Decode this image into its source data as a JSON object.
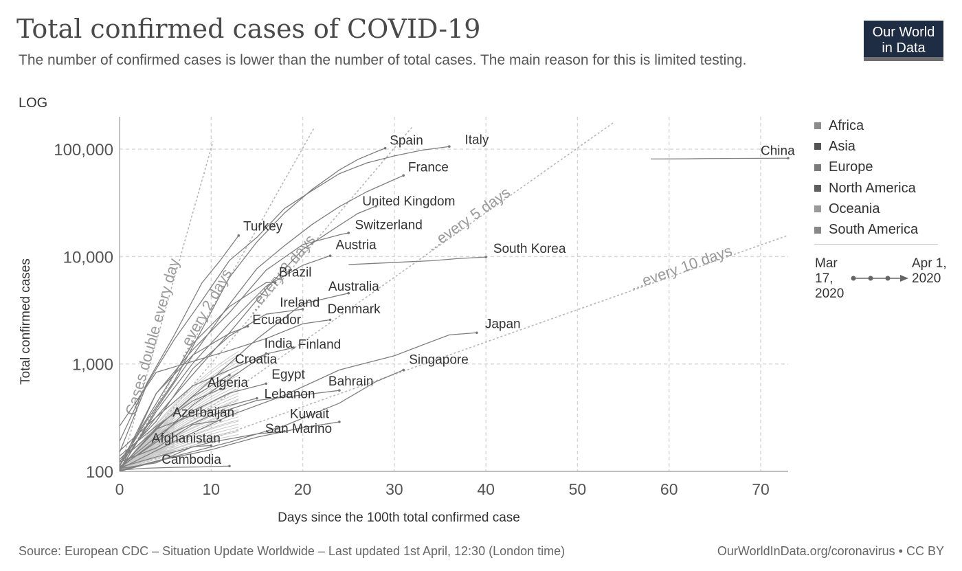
{
  "header": {
    "title": "Total confirmed cases of COVID-19",
    "subtitle": "The number of confirmed cases is lower than the number of total cases. The main reason for this is limited testing.",
    "scale_label": "LOG",
    "logo_line1": "Our World",
    "logo_line2": "in Data"
  },
  "footer": {
    "source": "Source: European CDC – Situation Update Worldwide – Last updated 1st April, 12:30 (London time)",
    "url": "OurWorldInData.org/coronavirus • CC BY"
  },
  "legend": {
    "items": [
      {
        "label": "Africa",
        "color": "#8c8c8c"
      },
      {
        "label": "Asia",
        "color": "#555555"
      },
      {
        "label": "Europe",
        "color": "#7a7a7a"
      },
      {
        "label": "North America",
        "color": "#5e5e5e"
      },
      {
        "label": "Oceania",
        "color": "#9a9a9a"
      },
      {
        "label": "South America",
        "color": "#888888"
      }
    ],
    "time_start": "Mar 17, 2020",
    "time_end": "Apr 1, 2020"
  },
  "chart_data": {
    "type": "line",
    "title": "Total confirmed cases of COVID-19",
    "xlabel": "Days since the 100th total confirmed case",
    "ylabel": "Total confirmed cases",
    "y_scale": "log",
    "xlim": [
      0,
      73
    ],
    "ylim": [
      100,
      200000
    ],
    "x_ticks": [
      0,
      10,
      20,
      30,
      40,
      50,
      60,
      70
    ],
    "y_ticks": [
      {
        "value": 100,
        "label": "100"
      },
      {
        "value": 1000,
        "label": "1,000"
      },
      {
        "value": 10000,
        "label": "10,000"
      },
      {
        "value": 100000,
        "label": "100,000"
      }
    ],
    "grid": true,
    "line_color": "#7f7f7f",
    "reference_lines": [
      {
        "name": "Cases double every day",
        "doubling_days": 1,
        "x_end": 10.2
      },
      {
        "name": "...every 2 days",
        "doubling_days": 2,
        "x_end": 21.2
      },
      {
        "name": "...every 3 days",
        "doubling_days": 3,
        "x_end": 32
      },
      {
        "name": "...every 5 days",
        "doubling_days": 5,
        "x_end": 54
      },
      {
        "name": "...every 10 days",
        "doubling_days": 10,
        "x_end": 73
      }
    ],
    "series": [
      {
        "name": "China",
        "x": [
          58,
          60,
          62,
          64,
          66,
          68,
          70,
          73
        ],
        "y": [
          81000,
          81050,
          81200,
          81700,
          81900,
          82050,
          82200,
          82300
        ]
      },
      {
        "name": "Italy",
        "x": [
          0,
          3,
          6,
          9,
          12,
          15,
          18,
          21,
          24,
          27,
          30,
          33,
          36
        ],
        "y": [
          150,
          650,
          1700,
          3900,
          9200,
          15100,
          27980,
          41035,
          59138,
          74386,
          86498,
          97689,
          105792
        ]
      },
      {
        "name": "Spain",
        "x": [
          0,
          3,
          6,
          9,
          12,
          15,
          18,
          21,
          24,
          26,
          28,
          29
        ],
        "y": [
          114,
          300,
          700,
          2100,
          6400,
          13700,
          25400,
          42000,
          64000,
          80000,
          94400,
          102000
        ]
      },
      {
        "name": "France",
        "x": [
          0,
          4,
          8,
          12,
          15,
          18,
          21,
          24,
          27,
          30,
          31
        ],
        "y": [
          100,
          380,
          1200,
          3600,
          7730,
          12600,
          19850,
          29150,
          40170,
          52130,
          56900
        ]
      },
      {
        "name": "United Kingdom",
        "x": [
          0,
          4,
          8,
          12,
          16,
          20,
          24,
          26,
          28
        ],
        "y": [
          115,
          320,
          800,
          1950,
          5000,
          11660,
          19520,
          25150,
          29474
        ]
      },
      {
        "name": "Switzerland",
        "x": [
          0,
          4,
          8,
          12,
          16,
          20,
          24,
          25
        ],
        "y": [
          100,
          530,
          1360,
          3010,
          7470,
          12928,
          15922,
          16605
        ]
      },
      {
        "name": "Austria",
        "x": [
          0,
          4,
          8,
          12,
          16,
          20,
          23
        ],
        "y": [
          102,
          360,
          1016,
          2388,
          5283,
          8291,
          10180
        ]
      },
      {
        "name": "Turkey",
        "x": [
          0,
          3,
          6,
          9,
          11,
          13
        ],
        "y": [
          191,
          670,
          1872,
          5698,
          9217,
          15679
        ]
      },
      {
        "name": "Brazil",
        "x": [
          0,
          4,
          8,
          12,
          16,
          17
        ],
        "y": [
          121,
          428,
          1546,
          3417,
          5717,
          5717
        ]
      },
      {
        "name": "South Korea",
        "x": [
          25,
          28,
          31,
          34,
          37,
          40
        ],
        "y": [
          8413,
          8652,
          8897,
          9137,
          9583,
          9887
        ]
      },
      {
        "name": "Australia",
        "x": [
          0,
          5,
          10,
          15,
          20,
          25
        ],
        "y": [
          107,
          300,
          710,
          1709,
          3635,
          4559
        ]
      },
      {
        "name": "Ireland",
        "x": [
          0,
          4,
          8,
          12,
          16,
          20
        ],
        "y": [
          129,
          292,
          906,
          1819,
          2910,
          3235
        ]
      },
      {
        "name": "Denmark",
        "x": [
          0,
          4,
          8,
          12,
          16,
          20,
          23
        ],
        "y": [
          264,
          836,
          1057,
          1337,
          1724,
          2366,
          2577
        ]
      },
      {
        "name": "Ecuador",
        "x": [
          0,
          4,
          8,
          12,
          14
        ],
        "y": [
          111,
          532,
          1211,
          1924,
          2240
        ]
      },
      {
        "name": "India",
        "x": [
          0,
          4,
          8,
          12,
          16
        ],
        "y": [
          107,
          194,
          415,
          727,
          1251
        ]
      },
      {
        "name": "Finland",
        "x": [
          0,
          4,
          8,
          12,
          16,
          19
        ],
        "y": [
          155,
          319,
          626,
          880,
          1240,
          1418
        ]
      },
      {
        "name": "Japan",
        "x": [
          0,
          6,
          12,
          18,
          24,
          30,
          36,
          39
        ],
        "y": [
          105,
          190,
          331,
          511,
          880,
          1193,
          1866,
          1953
        ]
      },
      {
        "name": "Croatia",
        "x": [
          0,
          4,
          8,
          12
        ],
        "y": [
          105,
          254,
          495,
          790
        ]
      },
      {
        "name": "Egypt",
        "x": [
          0,
          4,
          8,
          12,
          16
        ],
        "y": [
          110,
          210,
          366,
          536,
          656
        ]
      },
      {
        "name": "Algeria",
        "x": [
          0,
          4,
          8,
          11
        ],
        "y": [
          139,
          264,
          454,
          584
        ]
      },
      {
        "name": "Singapore",
        "x": [
          0,
          6,
          12,
          18,
          24,
          28,
          31
        ],
        "y": [
          102,
          138,
          187,
          266,
          432,
          685,
          879
        ]
      },
      {
        "name": "Bahrain",
        "x": [
          0,
          5,
          10,
          15,
          20,
          24
        ],
        "y": [
          109,
          214,
          332,
          458,
          515,
          567
        ]
      },
      {
        "name": "Lebanon",
        "x": [
          0,
          4,
          8,
          12,
          15
        ],
        "y": [
          124,
          248,
          333,
          412,
          479
        ]
      },
      {
        "name": "Azerbaijan",
        "x": [
          0,
          4,
          8,
          11
        ],
        "y": [
          122,
          165,
          273,
          298
        ]
      },
      {
        "name": "Kuwait",
        "x": [
          0,
          5,
          10,
          15,
          20,
          24
        ],
        "y": [
          100,
          130,
          159,
          208,
          255,
          289
        ]
      },
      {
        "name": "San Marino",
        "x": [
          0,
          5,
          10,
          15,
          18
        ],
        "y": [
          109,
          144,
          187,
          223,
          236
        ]
      },
      {
        "name": "Afghanistan",
        "x": [
          0,
          4,
          8,
          10
        ],
        "y": [
          106,
          120,
          170,
          174
        ]
      },
      {
        "name": "Cambodia",
        "x": [
          0,
          3,
          6,
          9,
          12
        ],
        "y": [
          103,
          107,
          109,
          110,
          112
        ]
      }
    ],
    "labels": [
      {
        "text": "Spain",
        "x": 29.5,
        "y": 110000
      },
      {
        "text": "Italy",
        "x": 37.7,
        "y": 112000
      },
      {
        "text": "China",
        "x": 70,
        "y": 88000
      },
      {
        "text": "France",
        "x": 31.5,
        "y": 62000
      },
      {
        "text": "United Kingdom",
        "x": 26.5,
        "y": 30000
      },
      {
        "text": "Turkey",
        "x": 13.5,
        "y": 17500
      },
      {
        "text": "Switzerland",
        "x": 25.7,
        "y": 18000
      },
      {
        "text": "Austria",
        "x": 23.6,
        "y": 11700
      },
      {
        "text": "South Korea",
        "x": 40.8,
        "y": 10800
      },
      {
        "text": "Brazil",
        "x": 17.4,
        "y": 6500
      },
      {
        "text": "Australia",
        "x": 22.8,
        "y": 4800
      },
      {
        "text": "Ireland",
        "x": 17.5,
        "y": 3400
      },
      {
        "text": "Denmark",
        "x": 22.7,
        "y": 2950
      },
      {
        "text": "Ecuador",
        "x": 14.5,
        "y": 2350
      },
      {
        "text": "India",
        "x": 15.8,
        "y": 1420
      },
      {
        "text": "Finland",
        "x": 19.5,
        "y": 1390
      },
      {
        "text": "Japan",
        "x": 39.9,
        "y": 2160
      },
      {
        "text": "Croatia",
        "x": 12.6,
        "y": 1010
      },
      {
        "text": "Singapore",
        "x": 31.6,
        "y": 1000
      },
      {
        "text": "Egypt",
        "x": 16.6,
        "y": 730
      },
      {
        "text": "Algeria",
        "x": 9.6,
        "y": 610
      },
      {
        "text": "Bahrain",
        "x": 22.8,
        "y": 630
      },
      {
        "text": "Lebanon",
        "x": 15.8,
        "y": 480
      },
      {
        "text": "Azerbaijan",
        "x": 5.8,
        "y": 322
      },
      {
        "text": "Kuwait",
        "x": 18.6,
        "y": 314
      },
      {
        "text": "San Marino",
        "x": 15.9,
        "y": 229
      },
      {
        "text": "Afghanistan",
        "x": 3.5,
        "y": 185
      },
      {
        "text": "Cambodia",
        "x": 4.6,
        "y": 118
      }
    ]
  }
}
